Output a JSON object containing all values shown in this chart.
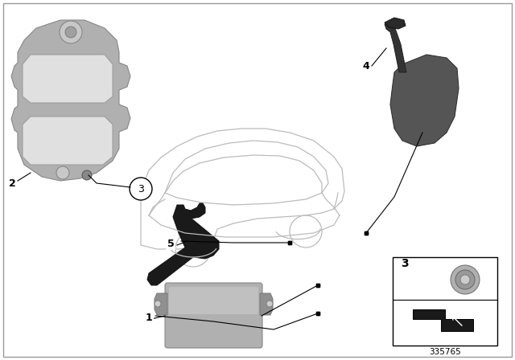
{
  "background_color": "#ffffff",
  "border_color": "#cccccc",
  "part_number": "335765",
  "gray_part": "#aaaaaa",
  "gray_dark": "#888888",
  "gray_light": "#cccccc",
  "black_part": "#2a2a2a",
  "car_line_color": "#bbbbbb",
  "line_color": "#000000"
}
